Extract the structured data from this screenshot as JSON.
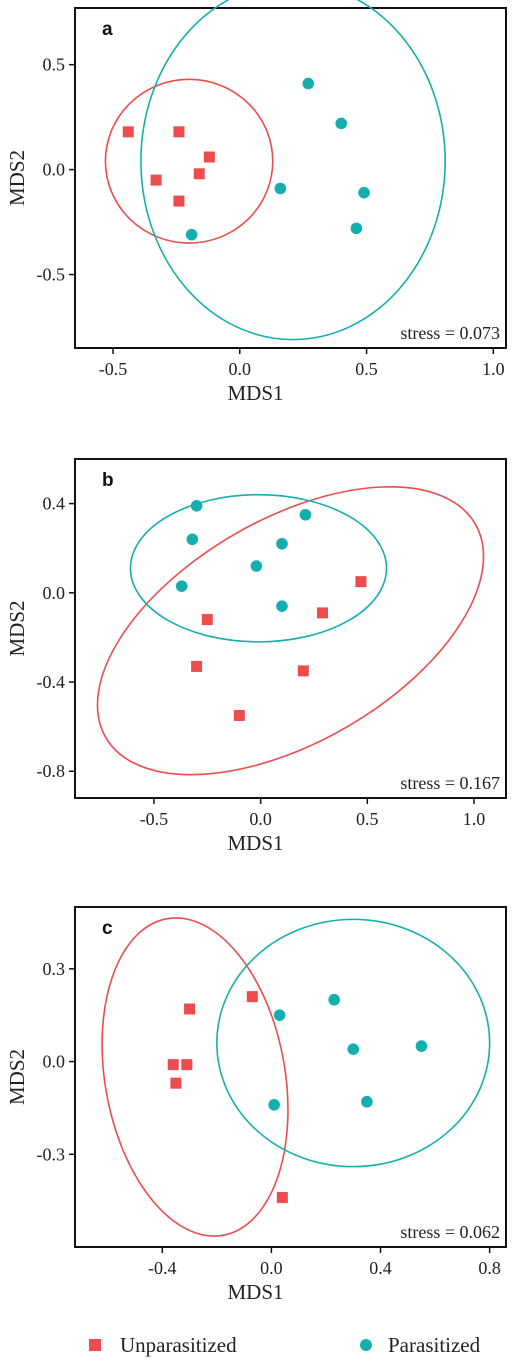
{
  "legend": {
    "unparasitized_label": "Unparasitized",
    "parasitized_label": "Parasitized"
  },
  "colors": {
    "unparasitized": "#ec4c4c",
    "parasitized": "#15aeae"
  },
  "chart_data": [
    {
      "type": "scatter",
      "panel": "a",
      "xlabel": "MDS1",
      "ylabel": "MDS2",
      "xlim": [
        -0.65,
        1.05
      ],
      "ylim": [
        -0.85,
        0.77
      ],
      "xticks": [
        -0.5,
        0.0,
        0.5,
        1.0
      ],
      "xtick_labels": [
        "-0.5",
        "0.0",
        "0.5",
        "1.0"
      ],
      "yticks": [
        -0.5,
        0.0,
        0.5
      ],
      "ytick_labels": [
        "-0.5",
        "0.0",
        "0.5"
      ],
      "stress_label": "stress = 0.073",
      "series": [
        {
          "name": "Unparasitized",
          "marker": "square",
          "points": [
            [
              -0.44,
              0.18
            ],
            [
              -0.24,
              0.18
            ],
            [
              -0.33,
              -0.05
            ],
            [
              -0.12,
              0.06
            ],
            [
              -0.16,
              -0.02
            ],
            [
              -0.24,
              -0.15
            ]
          ],
          "ellipse": {
            "center": [
              -0.2,
              0.04
            ],
            "rx": 0.33,
            "ry": 0.39
          }
        },
        {
          "name": "Parasitized",
          "marker": "circle",
          "points": [
            [
              0.27,
              0.41
            ],
            [
              0.4,
              0.22
            ],
            [
              0.16,
              -0.09
            ],
            [
              0.49,
              -0.11
            ],
            [
              0.46,
              -0.28
            ],
            [
              -0.19,
              -0.31
            ]
          ],
          "ellipse": {
            "center": [
              0.21,
              0.04
            ],
            "rx": 0.6,
            "ry": 0.85
          }
        }
      ]
    },
    {
      "type": "scatter",
      "panel": "b",
      "xlabel": "MDS1",
      "ylabel": "MDS2",
      "xlim": [
        -0.87,
        1.15
      ],
      "ylim": [
        -0.92,
        0.6
      ],
      "xticks": [
        -0.5,
        0.0,
        0.5,
        1.0
      ],
      "xtick_labels": [
        "-0.5",
        "0.0",
        "0.5",
        "1.0"
      ],
      "yticks": [
        -0.8,
        -0.4,
        0.0,
        0.4
      ],
      "ytick_labels": [
        "-0.8",
        "-0.4",
        "0.0",
        "0.4"
      ],
      "stress_label": "stress = 0.167",
      "series": [
        {
          "name": "Unparasitized",
          "marker": "square",
          "points": [
            [
              0.47,
              0.05
            ],
            [
              -0.25,
              -0.12
            ],
            [
              0.29,
              -0.09
            ],
            [
              -0.3,
              -0.33
            ],
            [
              0.2,
              -0.35
            ],
            [
              -0.1,
              -0.55
            ]
          ],
          "ellipse": {
            "center": [
              0.14,
              -0.17
            ],
            "rx": 1.0,
            "ry": 0.5,
            "angle": -30
          }
        },
        {
          "name": "Parasitized",
          "marker": "circle",
          "points": [
            [
              -0.3,
              0.39
            ],
            [
              0.21,
              0.35
            ],
            [
              -0.32,
              0.24
            ],
            [
              0.1,
              0.22
            ],
            [
              -0.02,
              0.12
            ],
            [
              -0.37,
              0.03
            ],
            [
              0.1,
              -0.06
            ]
          ],
          "ellipse": {
            "center": [
              -0.01,
              0.11
            ],
            "rx": 0.6,
            "ry": 0.33
          }
        }
      ]
    },
    {
      "type": "scatter",
      "panel": "c",
      "xlabel": "MDS1",
      "ylabel": "MDS2",
      "xlim": [
        -0.72,
        0.86
      ],
      "ylim": [
        -0.6,
        0.5
      ],
      "xticks": [
        -0.4,
        0.0,
        0.4,
        0.8
      ],
      "xtick_labels": [
        "-0.4",
        "0.0",
        "0.4",
        "0.8"
      ],
      "yticks": [
        -0.3,
        0.0,
        0.3
      ],
      "ytick_labels": [
        "-0.3",
        "0.0",
        "0.3"
      ],
      "stress_label": "stress = 0.062",
      "series": [
        {
          "name": "Unparasitized",
          "marker": "square",
          "points": [
            [
              -0.07,
              0.21
            ],
            [
              -0.3,
              0.17
            ],
            [
              -0.36,
              -0.01
            ],
            [
              -0.31,
              -0.01
            ],
            [
              -0.35,
              -0.07
            ],
            [
              0.04,
              -0.44
            ]
          ],
          "ellipse": {
            "center": [
              -0.28,
              -0.05
            ],
            "rx": 0.33,
            "ry": 0.52,
            "angle": -10
          }
        },
        {
          "name": "Parasitized",
          "marker": "circle",
          "points": [
            [
              0.23,
              0.2
            ],
            [
              0.03,
              0.15
            ],
            [
              0.3,
              0.04
            ],
            [
              0.55,
              0.05
            ],
            [
              0.35,
              -0.13
            ],
            [
              0.01,
              -0.14
            ]
          ],
          "ellipse": {
            "center": [
              0.3,
              0.06
            ],
            "rx": 0.5,
            "ry": 0.4
          }
        }
      ]
    }
  ]
}
